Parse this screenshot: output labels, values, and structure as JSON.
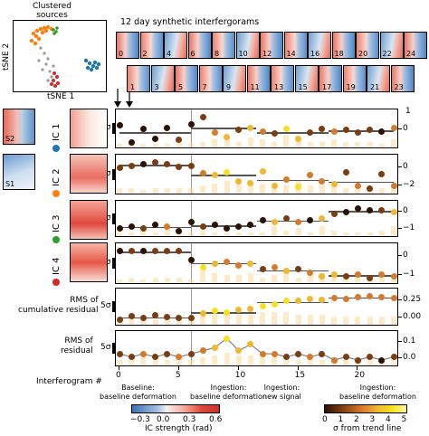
{
  "tsne": {
    "title": "Clustered\nsources",
    "xlabel": "tSNE 1",
    "ylabel": "tSNE 2"
  },
  "thumbs": {
    "title": "12 day synthetic interfergorams",
    "row1_labels": [
      "0",
      "2",
      "4",
      "6",
      "8",
      "10",
      "12",
      "14",
      "16",
      "18",
      "20",
      "22",
      "24"
    ],
    "row2_labels": [
      "1",
      "3",
      "5",
      "7",
      "9",
      "11",
      "13",
      "15",
      "17",
      "19",
      "21",
      "23"
    ]
  },
  "maps": {
    "s1_label": "S1",
    "s2_label": "S2"
  },
  "panels": {
    "ic_labels": [
      "IC 1",
      "IC 2",
      "IC 3",
      "IC 4"
    ],
    "ic_colors": [
      "#1f77b4",
      "#ff7f0e",
      "#2ca02c",
      "#d62728"
    ],
    "left_sigma": "5σ",
    "rms_cum_label": "RMS of\ncumulative residual",
    "rms_label": "RMS of\nresidual",
    "right_ticks": [
      [
        "0"
      ],
      [
        "0",
        "−2"
      ],
      [
        "0",
        "−1"
      ],
      [
        "0",
        "−1"
      ],
      [
        "0.25",
        "0.00"
      ],
      [
        "0.1",
        "0.0"
      ]
    ],
    "right_ticks_top": [
      "1",
      "",
      "",
      "",
      "",
      ""
    ]
  },
  "xaxis": {
    "label": "Interferogram #",
    "ticks": [
      "0",
      "5",
      "10",
      "15",
      "20"
    ]
  },
  "phases": [
    {
      "line1": "Baseline:",
      "line2": "baseline deformation"
    },
    {
      "line1": "Ingestion:",
      "line2": "baseline deformation"
    },
    {
      "line1": "Ingestion:",
      "line2": "new signal"
    },
    {
      "line1": "Ingestion:",
      "line2": "baseline deformation"
    }
  ],
  "colorbars": {
    "ic": {
      "ticks": [
        "−0.3",
        "0.0",
        "0.3",
        "0.6"
      ],
      "label": "IC strength (rad)"
    },
    "sigma": {
      "ticks": [
        "0",
        "1",
        "2",
        "3",
        "4",
        "5"
      ],
      "label": "σ from trend line"
    }
  },
  "colors": {
    "bar": "#f9d99b",
    "trend": "#555555",
    "vline": "#9a9a9a"
  },
  "chart_data": [
    {
      "type": "scatter",
      "title": "IC 1",
      "x": [
        0,
        1,
        2,
        3,
        4,
        5,
        6,
        7,
        8,
        9,
        10,
        11,
        12,
        13,
        14,
        15,
        16,
        17,
        18,
        19,
        20,
        21,
        22,
        23
      ],
      "values": [
        0.8,
        -0.6,
        0.5,
        -0.3,
        0.6,
        -0.4,
        0.9,
        1.5,
        0.2,
        -0.2,
        0.4,
        0.6,
        0.3,
        0.1,
        0.5,
        -0.3,
        0.2,
        0.5,
        0.3,
        0.4,
        0.2,
        0.4,
        0.3,
        0.6
      ],
      "sigma": [
        0,
        0,
        0,
        0,
        0,
        1,
        0,
        1,
        2,
        3,
        1,
        3,
        2,
        1,
        4,
        3,
        1,
        1,
        2,
        1,
        1,
        1,
        0,
        2
      ]
    },
    {
      "type": "scatter",
      "title": "IC 2",
      "x": [
        0,
        1,
        2,
        3,
        4,
        5,
        6,
        7,
        8,
        9,
        10,
        11,
        12,
        13,
        14,
        15,
        16,
        17,
        18,
        19,
        20,
        21,
        22,
        23
      ],
      "values": [
        0.2,
        0.4,
        0.6,
        0.8,
        0.6,
        0.3,
        0.4,
        -0.4,
        -0.6,
        -0.3,
        -1.3,
        -1.5,
        -0.2,
        -1.8,
        -1.1,
        -1.9,
        -0.6,
        -1.3,
        -1.6,
        -0.3,
        -1.8,
        -2.1,
        -0.5,
        -1.8
      ],
      "sigma": [
        1,
        1,
        0,
        1,
        1,
        1,
        1,
        2,
        3,
        4,
        3,
        3,
        3,
        3,
        2,
        4,
        2,
        2,
        3,
        1,
        2,
        1,
        1,
        2
      ]
    },
    {
      "type": "scatter",
      "title": "IC 3",
      "x": [
        0,
        1,
        2,
        3,
        4,
        5,
        6,
        7,
        8,
        9,
        10,
        11,
        12,
        13,
        14,
        15,
        16,
        17,
        18,
        19,
        20,
        21,
        22,
        23
      ],
      "values": [
        -0.1,
        0.0,
        -0.1,
        0.1,
        0.0,
        -0.2,
        0.2,
        0.0,
        0.1,
        -0.1,
        0.0,
        0.1,
        0.3,
        0.2,
        0.4,
        0.2,
        0.3,
        0.4,
        0.6,
        0.7,
        0.9,
        0.8,
        0.8,
        0.7
      ],
      "sigma": [
        0,
        0,
        1,
        0,
        2,
        0,
        0,
        1,
        0,
        0,
        0,
        0,
        0,
        3,
        1,
        2,
        0,
        3,
        1,
        0,
        0,
        0,
        1,
        3
      ]
    },
    {
      "type": "scatter",
      "title": "IC 4",
      "x": [
        0,
        1,
        2,
        3,
        4,
        5,
        6,
        7,
        8,
        9,
        10,
        11,
        12,
        13,
        14,
        15,
        16,
        17,
        18,
        19,
        20,
        21,
        22,
        23
      ],
      "values": [
        0.5,
        0.5,
        0.5,
        0.5,
        0.5,
        0.5,
        0.0,
        -0.4,
        -0.2,
        -0.1,
        -0.3,
        -0.2,
        -0.5,
        -0.4,
        -0.6,
        -0.5,
        -0.7,
        -0.9,
        -0.8,
        -0.9,
        -0.8,
        -1.0,
        -0.8,
        -0.9
      ],
      "sigma": [
        0,
        1,
        0,
        1,
        1,
        1,
        0,
        4,
        3,
        2,
        2,
        3,
        1,
        2,
        3,
        1,
        2,
        3,
        3,
        1,
        2,
        1,
        2,
        2
      ]
    },
    {
      "type": "scatter",
      "title": "RMS of cumulative residual",
      "x": [
        0,
        1,
        2,
        3,
        4,
        5,
        6,
        7,
        8,
        9,
        10,
        11,
        12,
        13,
        14,
        15,
        16,
        17,
        18,
        19,
        20,
        21,
        22,
        23
      ],
      "values": [
        0.02,
        0.05,
        0.03,
        0.06,
        0.04,
        0.03,
        0.03,
        0.08,
        0.1,
        0.09,
        0.11,
        0.12,
        0.15,
        0.17,
        0.2,
        0.2,
        0.22,
        0.21,
        0.23,
        0.22,
        0.24,
        0.25,
        0.24,
        0.23
      ],
      "sigma": [
        1,
        1,
        1,
        1,
        1,
        1,
        1,
        3,
        4,
        4,
        3,
        3,
        4,
        4,
        4,
        3,
        3,
        3,
        2,
        2,
        2,
        2,
        2,
        2
      ]
    },
    {
      "type": "line",
      "title": "RMS of residual",
      "x": [
        0,
        1,
        2,
        3,
        4,
        5,
        6,
        7,
        8,
        9,
        10,
        11,
        12,
        13,
        14,
        15,
        16,
        17,
        18,
        19,
        20,
        21,
        22,
        23
      ],
      "values": [
        0.05,
        0.04,
        0.05,
        0.04,
        0.05,
        0.04,
        0.05,
        0.06,
        0.07,
        0.1,
        0.06,
        0.08,
        0.05,
        0.05,
        0.04,
        0.05,
        0.04,
        0.05,
        0.03,
        0.04,
        0.03,
        0.04,
        0.03,
        0.04
      ],
      "sigma": [
        1,
        1,
        2,
        1,
        1,
        2,
        1,
        2,
        3,
        4,
        3,
        3,
        2,
        2,
        1,
        1,
        2,
        1,
        2,
        1,
        1,
        1,
        0,
        1
      ]
    }
  ]
}
